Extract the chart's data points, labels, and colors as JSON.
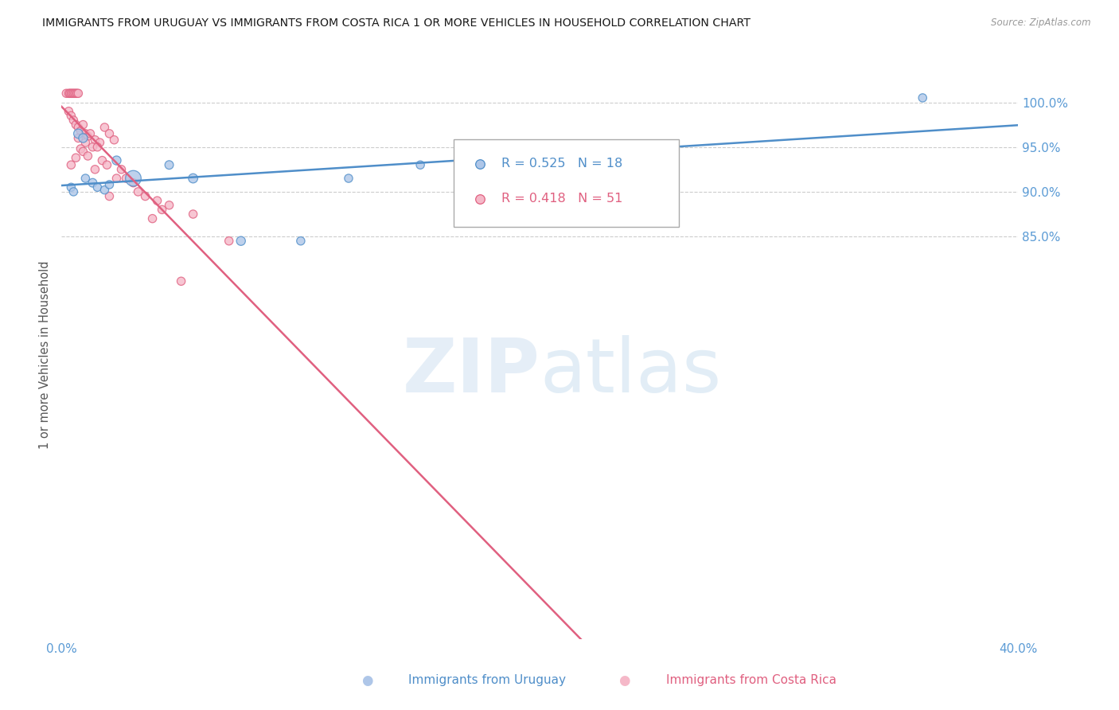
{
  "title": "IMMIGRANTS FROM URUGUAY VS IMMIGRANTS FROM COSTA RICA 1 OR MORE VEHICLES IN HOUSEHOLD CORRELATION CHART",
  "source": "Source: ZipAtlas.com",
  "ylabel": "1 or more Vehicles in Household",
  "xlim": [
    0.0,
    40.0
  ],
  "ylim": [
    40.0,
    103.5
  ],
  "yticks": [
    85.0,
    90.0,
    95.0,
    100.0
  ],
  "ytick_labels": [
    "85.0%",
    "90.0%",
    "95.0%",
    "100.0%"
  ],
  "xtick_vals": [
    0.0,
    8.0,
    16.0,
    24.0,
    32.0,
    40.0
  ],
  "xtick_labels": [
    "0.0%",
    "",
    "",
    "",
    "",
    "40.0%"
  ],
  "legend_r_uruguay": "R = 0.525",
  "legend_n_uruguay": "N = 18",
  "legend_r_costa_rica": "R = 0.418",
  "legend_n_costa_rica": "N = 51",
  "watermark_zip": "ZIP",
  "watermark_atlas": "atlas",
  "uruguay_color": "#aec6e8",
  "costa_rica_color": "#f5b8c8",
  "uruguay_line_color": "#4f8ec9",
  "costa_rica_line_color": "#e06080",
  "title_color": "#1a1a1a",
  "axis_color": "#5b9bd5",
  "background_color": "#ffffff",
  "uruguay_x": [
    0.4,
    0.5,
    0.7,
    0.9,
    1.0,
    1.3,
    1.5,
    1.8,
    2.0,
    2.3,
    3.0,
    4.5,
    5.5,
    7.5,
    10.0,
    12.0,
    15.0,
    36.0
  ],
  "uruguay_y": [
    90.5,
    90.0,
    96.5,
    96.0,
    91.5,
    91.0,
    90.5,
    90.2,
    90.8,
    93.5,
    91.5,
    93.0,
    91.5,
    84.5,
    84.5,
    91.5,
    93.0,
    100.5
  ],
  "uruguay_size": [
    55,
    55,
    70,
    65,
    55,
    60,
    55,
    55,
    55,
    65,
    200,
    60,
    70,
    65,
    55,
    55,
    55,
    55
  ],
  "costa_rica_x": [
    0.2,
    0.3,
    0.35,
    0.4,
    0.45,
    0.5,
    0.55,
    0.6,
    0.65,
    0.7,
    0.3,
    0.4,
    0.5,
    0.6,
    0.7,
    0.8,
    0.9,
    1.0,
    1.1,
    1.2,
    1.4,
    1.6,
    1.8,
    2.0,
    2.2,
    2.5,
    3.0,
    3.5,
    4.0,
    4.5,
    5.5,
    7.0,
    1.0,
    1.3,
    0.8,
    1.5,
    0.9,
    1.1,
    1.7,
    2.3,
    3.2,
    4.2,
    0.6,
    0.4,
    1.9,
    2.7,
    0.7,
    1.4,
    2.0,
    3.8,
    5.0
  ],
  "costa_rica_y": [
    101.0,
    101.0,
    101.0,
    101.0,
    101.0,
    101.0,
    101.0,
    101.0,
    101.0,
    101.0,
    99.0,
    98.5,
    98.0,
    97.5,
    97.2,
    96.8,
    97.5,
    96.5,
    96.2,
    96.5,
    95.8,
    95.5,
    97.2,
    96.5,
    95.8,
    92.5,
    91.0,
    89.5,
    89.0,
    88.5,
    87.5,
    84.5,
    95.5,
    95.0,
    94.8,
    95.0,
    94.5,
    94.0,
    93.5,
    91.5,
    90.0,
    88.0,
    93.8,
    93.0,
    93.0,
    91.5,
    96.0,
    92.5,
    89.5,
    87.0,
    80.0
  ],
  "costa_rica_size": [
    55,
    55,
    55,
    55,
    55,
    55,
    55,
    55,
    55,
    55,
    55,
    55,
    55,
    55,
    55,
    55,
    55,
    55,
    55,
    55,
    55,
    55,
    55,
    55,
    55,
    55,
    55,
    55,
    55,
    55,
    55,
    55,
    55,
    55,
    55,
    55,
    55,
    55,
    55,
    55,
    55,
    55,
    55,
    55,
    55,
    55,
    55,
    55,
    55,
    55,
    55
  ]
}
